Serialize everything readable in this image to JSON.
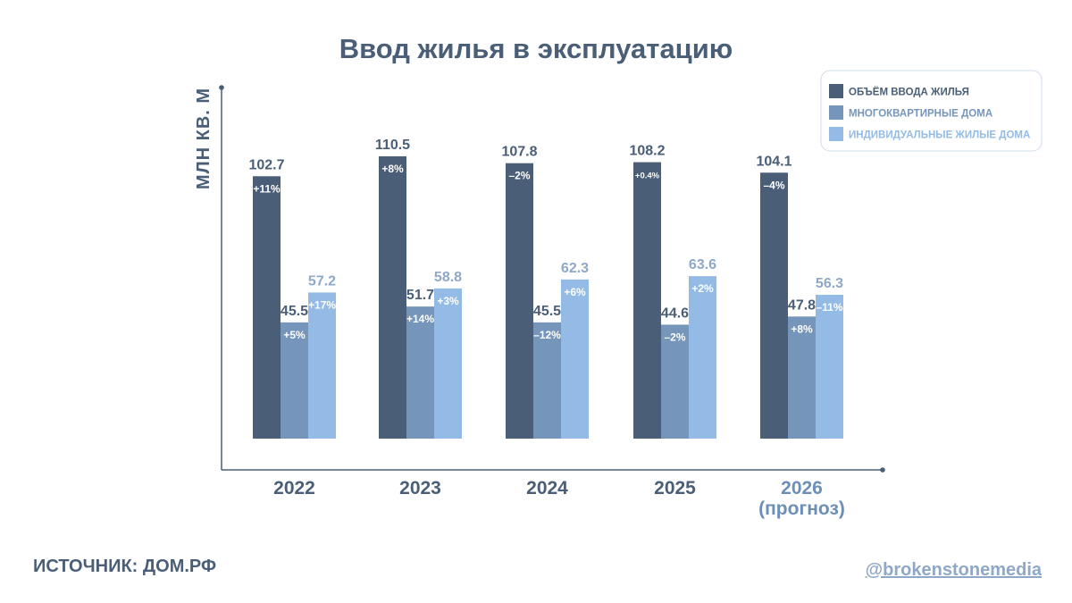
{
  "colors": {
    "total": "#4a5e77",
    "multi": "#7595ba",
    "individual": "#93bbe6",
    "text_dark": "#4a5e77",
    "text_light": "#8fa8c8"
  },
  "chart_data": {
    "type": "bar",
    "title": "Ввод жилья в эксплуатацию",
    "ylabel": "МЛН КВ. М",
    "xlabel": "",
    "ylim": [
      0,
      120
    ],
    "grid": false,
    "legend_position": "top-right",
    "categories": [
      "2022",
      "2023",
      "2024",
      "2025",
      "2026"
    ],
    "category_sublabels": [
      "",
      "",
      "",
      "",
      "(прогноз)"
    ],
    "series": [
      {
        "name": "ОБЪЁМ ВВОДА ЖИЛЬЯ",
        "color": "#4a5e77",
        "values": [
          102.7,
          110.5,
          107.8,
          108.2,
          104.1
        ],
        "labels": [
          "102.7",
          "110.5",
          "107.8",
          "108.2",
          "104.1"
        ],
        "changes": [
          "+11%",
          "+8%",
          "–2%",
          "+0.4%",
          "–4%"
        ]
      },
      {
        "name": "МНОГОКВАРТИРНЫЕ ДОМА",
        "color": "#7595ba",
        "values": [
          45.5,
          51.7,
          45.5,
          44.6,
          47.8
        ],
        "labels": [
          "45.5",
          "51.7",
          "45.5",
          "44.6",
          "47.8"
        ],
        "changes": [
          "+5%",
          "+14%",
          "–12%",
          "–2%",
          "+8%"
        ]
      },
      {
        "name": "ИНДИВИДУАЛЬНЫЕ ЖИЛЫЕ ДОМА",
        "color": "#93bbe6",
        "values": [
          57.2,
          58.8,
          62.3,
          63.6,
          56.3
        ],
        "labels": [
          "57.2",
          "58.8",
          "62.3",
          "63.6",
          "56.3"
        ],
        "changes": [
          "+17%",
          "+3%",
          "+6%",
          "+2%",
          "–11%"
        ]
      }
    ]
  },
  "footer": {
    "source": "ИСТОЧНИК: ДОМ.РФ",
    "handle": "@brokenstonemedia"
  }
}
